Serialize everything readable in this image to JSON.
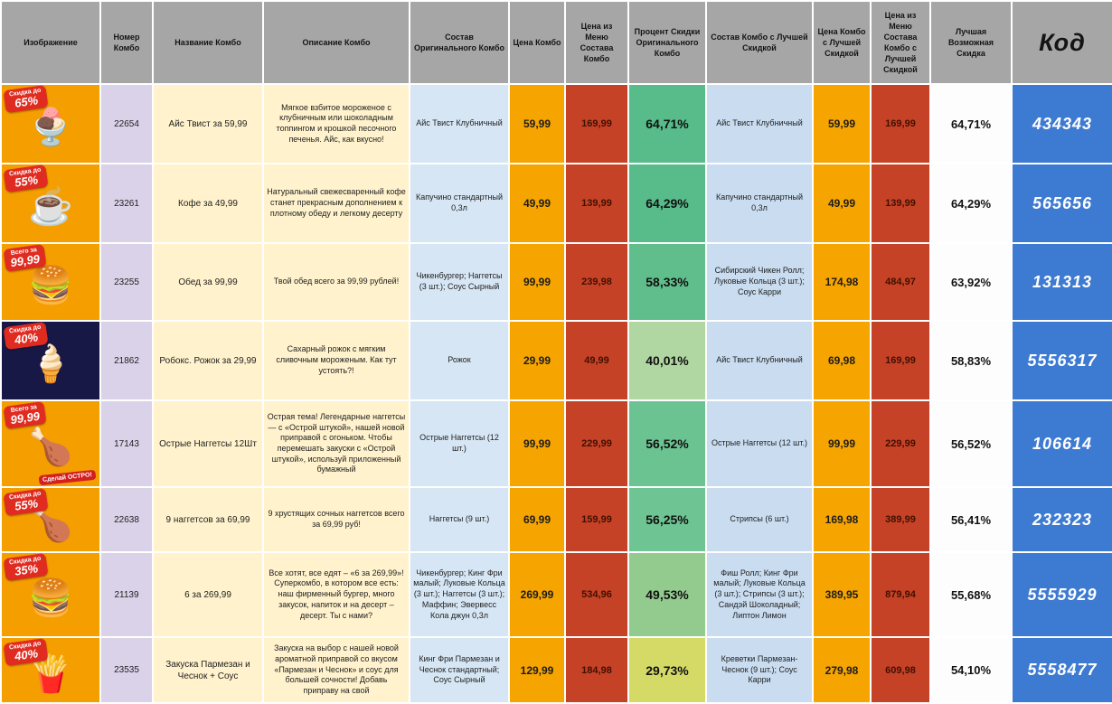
{
  "header": {
    "columns": [
      "Изображение",
      "Номер Комбо",
      "Название Комбо",
      "Описание Комбо",
      "Состав Оригинального Комбо",
      "Цена Комбо",
      "Цена из Меню Состава Комбо",
      "Процент Скидки Оригинального Комбо",
      "Состав Комбо с Лучшей Скидкой",
      "Цена Комбо с Лучшей Скидкой",
      "Цена из Меню Состава Комбо с Лучшей Скидкой",
      "Лучшая Возможная Скидка",
      "Код"
    ]
  },
  "rows": [
    {
      "image": {
        "badge_top": "Скидка до",
        "badge_main": "65%",
        "badge_extra": "",
        "emoji": "🍨",
        "bg": "#f59e00"
      },
      "number": "22654",
      "name": "Айс Твист за 59,99",
      "description": "Мягкое взбитое мороженое с клубничным или шоколадным топпингом и крошкой песочного печенья. Айс, как вкусно!",
      "original_composition": "Айс Твист Клубничный",
      "combo_price": "59,99",
      "menu_price": "169,99",
      "discount_percent": "64,71%",
      "discount_color": "#57bb8a",
      "best_composition": "Айс Твист Клубничный",
      "best_price": "59,99",
      "best_menu_price": "169,99",
      "best_discount": "64,71%",
      "code": "434343"
    },
    {
      "image": {
        "badge_top": "Скидка до",
        "badge_main": "55%",
        "badge_extra": "",
        "emoji": "☕",
        "bg": "#f59e00"
      },
      "number": "23261",
      "name": "Кофе за 49,99",
      "description": "Натуральный свежесваренный кофе станет прекрасным дополнением к плотному обеду и легкому десерту",
      "original_composition": "Капучино стандартный 0,3л",
      "combo_price": "49,99",
      "menu_price": "139,99",
      "discount_percent": "64,29%",
      "discount_color": "#57bb8a",
      "best_composition": "Капучино стандартный 0,3л",
      "best_price": "49,99",
      "best_menu_price": "139,99",
      "best_discount": "64,29%",
      "code": "565656"
    },
    {
      "image": {
        "badge_top": "Всего за",
        "badge_main": "99,99",
        "badge_extra": "",
        "emoji": "🍔",
        "bg": "#f59e00"
      },
      "number": "23255",
      "name": "Обед за 99,99",
      "description": "Твой обед всего за 99,99 рублей!",
      "original_composition": "Чикенбургер; Наггетсы (3 шт.); Соус Сырный",
      "combo_price": "99,99",
      "menu_price": "239,98",
      "discount_percent": "58,33%",
      "discount_color": "#5fbe8b",
      "best_composition": "Сибирский Чикен Ролл; Луковые Кольца (3 шт.); Соус Карри",
      "best_price": "174,98",
      "best_menu_price": "484,97",
      "best_discount": "63,92%",
      "code": "131313"
    },
    {
      "image": {
        "badge_top": "Скидка до",
        "badge_main": "40%",
        "badge_extra": "",
        "emoji": "🍦",
        "bg": "#181847"
      },
      "number": "21862",
      "name": "Робокс. Рожок за 29,99",
      "description": "Сахарный рожок с мягким сливочным мороженым. Как тут устоять?!",
      "original_composition": "Рожок",
      "combo_price": "29,99",
      "menu_price": "49,99",
      "discount_percent": "40,01%",
      "discount_color": "#b0d6a2",
      "best_composition": "Айс Твист Клубничный",
      "best_price": "69,98",
      "best_menu_price": "169,99",
      "best_discount": "58,83%",
      "code": "5556317"
    },
    {
      "image": {
        "badge_top": "Всего за",
        "badge_main": "99,99",
        "badge_extra": "Сделай ОСТРО!",
        "emoji": "🍗",
        "bg": "#f59e00"
      },
      "number": "17143",
      "name": "Острые Наггетсы 12Шт",
      "description": "Острая тема! Легендарные наггетсы — с «Острой штукой», нашей новой приправой с огоньком. Чтобы перемешать закуски с «Острой штукой», используй приложенный бумажный",
      "original_composition": "Острые Наггетсы (12 шт.)",
      "combo_price": "99,99",
      "menu_price": "229,99",
      "discount_percent": "56,52%",
      "discount_color": "#6cc392",
      "best_composition": "Острые Наггетсы (12 шт.)",
      "best_price": "99,99",
      "best_menu_price": "229,99",
      "best_discount": "56,52%",
      "code": "106614"
    },
    {
      "image": {
        "badge_top": "Скидка до",
        "badge_main": "55%",
        "badge_extra": "",
        "emoji": "🍗",
        "bg": "#f59e00"
      },
      "number": "22638",
      "name": "9 наггетсов за 69,99",
      "description": "9 хрустящих сочных наггетсов всего за 69,99 руб!",
      "original_composition": "Наггетсы (9 шт.)",
      "combo_price": "69,99",
      "menu_price": "159,99",
      "discount_percent": "56,25%",
      "discount_color": "#6ec593",
      "best_composition": "Стрипсы (6 шт.)",
      "best_price": "169,98",
      "best_menu_price": "389,99",
      "best_discount": "56,41%",
      "code": "232323"
    },
    {
      "image": {
        "badge_top": "Скидка до",
        "badge_main": "35%",
        "badge_extra": "",
        "emoji": "🍔",
        "bg": "#f59e00"
      },
      "number": "21139",
      "name": "6 за 269,99",
      "description": "Все хотят, все едят – «6 за 269,99»! Суперкомбо, в котором все есть: наш фирменный бургер, много закусок, напиток и на десерт – десерт. Ты с нами?",
      "original_composition": "Чикенбургер; Кинг Фри малый; Луковые Кольца (3 шт.); Наггетсы (3 шт.); Маффин; Эвервесс Кола джун 0,3л",
      "combo_price": "269,99",
      "menu_price": "534,96",
      "discount_percent": "49,53%",
      "discount_color": "#93cb8f",
      "best_composition": "Фиш Ролл; Кинг Фри малый; Луковые Кольца (3 шт.); Стрипсы (3 шт.); Сандэй Шоколадный; Липтон Лимон",
      "best_price": "389,95",
      "best_menu_price": "879,94",
      "best_discount": "55,68%",
      "code": "5555929"
    },
    {
      "image": {
        "badge_top": "Скидка до",
        "badge_main": "40%",
        "badge_extra": "",
        "emoji": "🍟",
        "bg": "#f59e00"
      },
      "number": "23535",
      "name": "Закуска Пармезан и Чеснок + Соус",
      "description": "Закуска на выбор с нашей новой ароматной приправой со вкусом «Пармезан и Чеснок» и соус для большей сочности! Добавь приправу на свой",
      "original_composition": "Кинг Фри Пармезан и Чеснок стандартный; Соус Сырный",
      "combo_price": "129,99",
      "menu_price": "184,98",
      "discount_percent": "29,73%",
      "discount_color": "#d5da67",
      "best_composition": "Креветки Пармезан-Чеснок (9 шт.); Соус Карри",
      "best_price": "279,98",
      "best_menu_price": "609,98",
      "best_discount": "54,10%",
      "code": "5558477"
    }
  ]
}
